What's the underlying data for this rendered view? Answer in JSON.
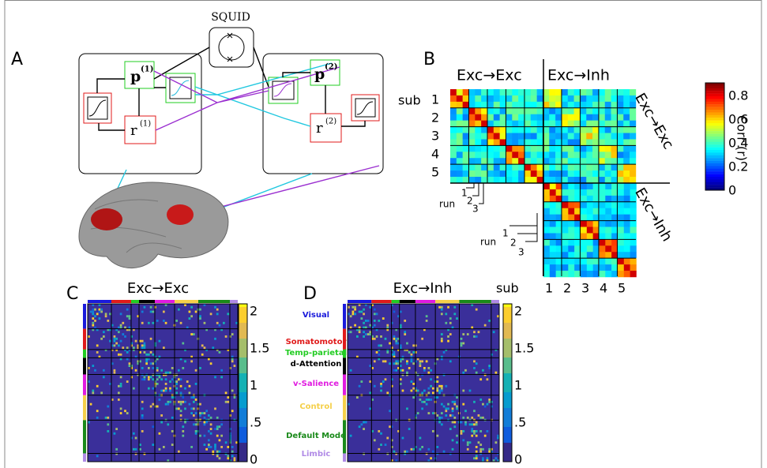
{
  "panels": {
    "a": {
      "label": "A",
      "squid": "SQUID",
      "p1": "p",
      "p1_sup": "(1)",
      "r1": "r",
      "r1_sup": "(1)",
      "p2": "p",
      "p2_sup": "(2)",
      "r2": "r",
      "r2_sup": "(2)"
    },
    "b": {
      "label": "B",
      "col_exc_exc": "Exc→Exc",
      "col_exc_inh": "Exc→Inh",
      "row_exc_exc": "Exc→Exc",
      "row_exc_inh": "Exc→Inh",
      "sub": "sub",
      "subjects": [
        "1",
        "2",
        "3",
        "4",
        "5"
      ],
      "run": "run",
      "runs": [
        "1",
        "2",
        "3"
      ],
      "colorbar_label": "Corr (r)",
      "colorbar_ticks": [
        "0.8",
        "0.6",
        "0.4",
        "0.2",
        "0"
      ]
    },
    "c": {
      "label": "C",
      "title": "Exc→Exc",
      "colorbar_ticks": [
        "2",
        "1.5",
        "1",
        ".5",
        "0"
      ]
    },
    "d": {
      "label": "D",
      "title": "Exc→Inh",
      "colorbar_ticks": [
        "2",
        "1.5",
        "1",
        ".5",
        "0"
      ],
      "networks": [
        {
          "name": "Visual",
          "color": "#1a1adb"
        },
        {
          "name": "Somatomotor",
          "color": "#e01b1b"
        },
        {
          "name": "Temp-parietal",
          "color": "#22cc22"
        },
        {
          "name": "d-Attention",
          "color": "#000000"
        },
        {
          "name": "v-Salience",
          "color": "#e01be0"
        },
        {
          "name": "Control",
          "color": "#f5d04a"
        },
        {
          "name": "Default Mode",
          "color": "#1a8a1a"
        },
        {
          "name": "Limbic",
          "color": "#b08ae6"
        }
      ]
    }
  }
}
